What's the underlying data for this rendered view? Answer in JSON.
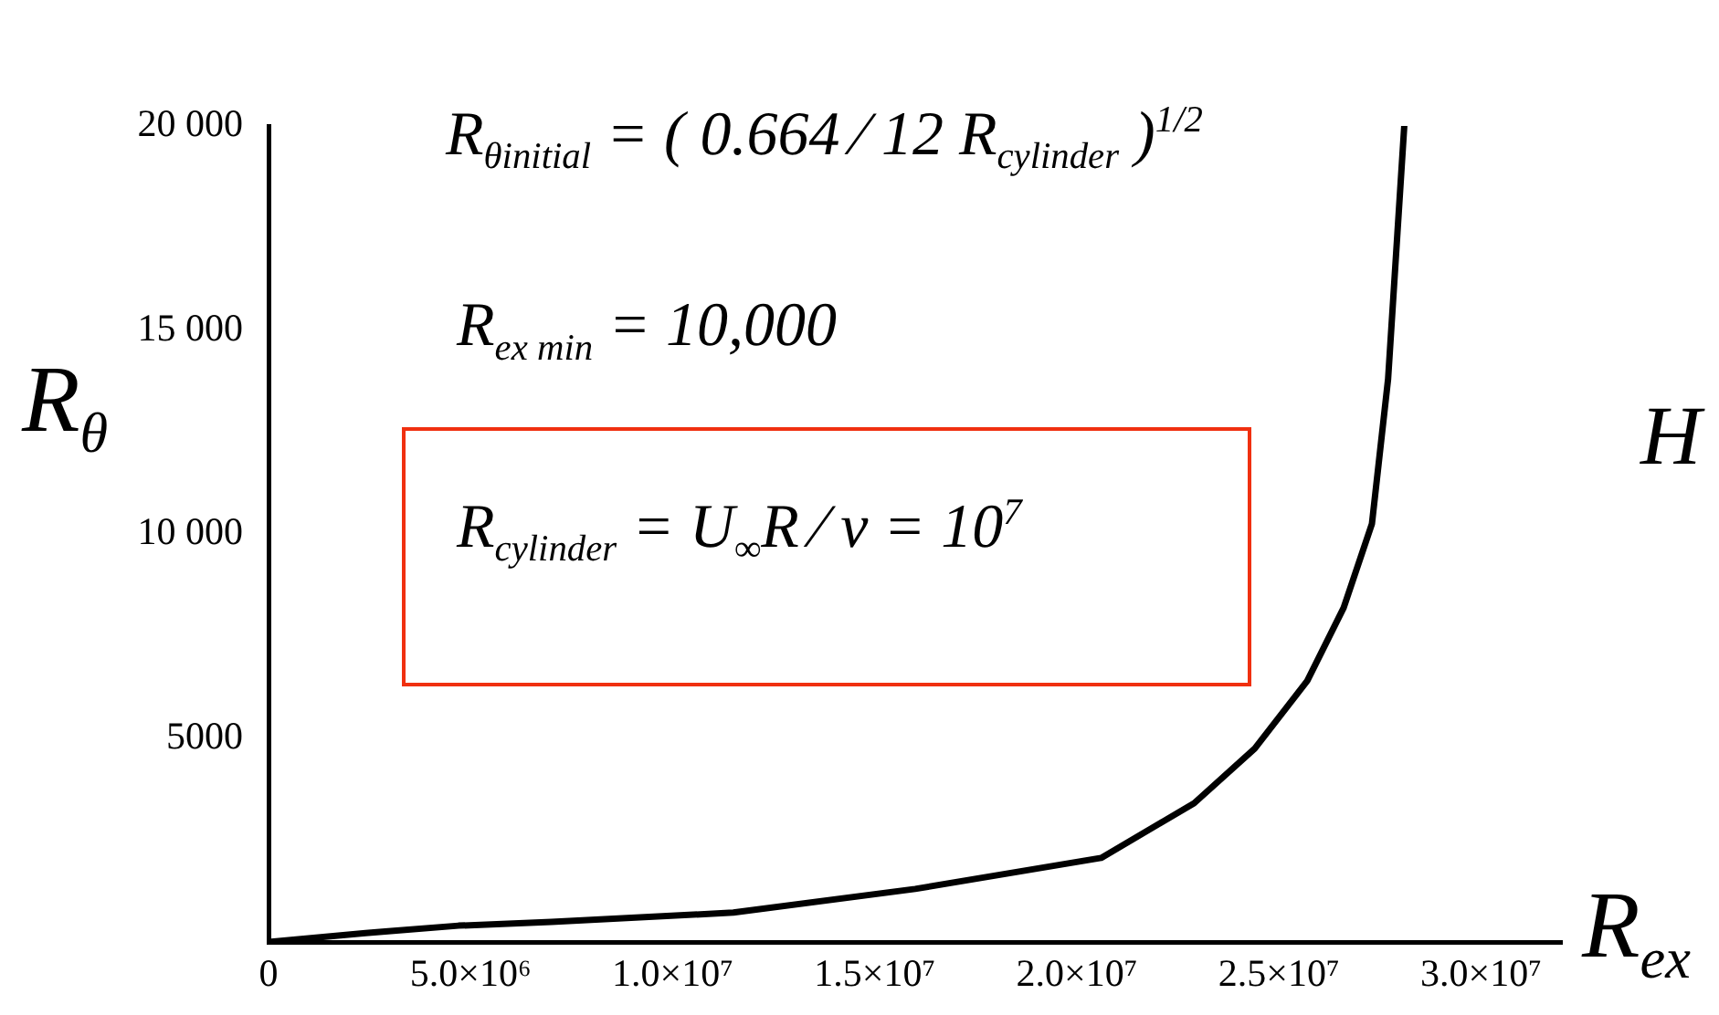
{
  "chart_data": {
    "type": "line",
    "xlabel": "R$_{ex}$",
    "ylabel": "R$_{θ}$",
    "annotations": [
      "R$_{θinitial}$ = ( 0.664 ⁄ 12 R$_{cylinder}$ )$^{1/2}$",
      "R$_{ex min}$ = 10,000",
      "R$_{cylinder}$ = U$_{∞}$R ⁄ ν = 10$^{7}$",
      "H"
    ],
    "x": [
      0,
      2400000,
      4700000,
      7000000,
      11500000,
      16000000,
      20600000,
      22900000,
      24400000,
      25700000,
      26600000,
      27300000,
      27700000,
      28100000
    ],
    "series": [
      {
        "color": "#000000",
        "values": [
          0,
          220,
          400,
          490,
          720,
          1300,
          2060,
          3400,
          4740,
          6400,
          8190,
          10250,
          13800,
          20000
        ]
      }
    ],
    "xlim": [
      0,
      32000000
    ],
    "xticks": [
      {
        "value": 0,
        "label": "0"
      },
      {
        "value": 5000000,
        "label": "5.0×10⁶"
      },
      {
        "value": 10000000,
        "label": "1.0×10⁷"
      },
      {
        "value": 15000000,
        "label": "1.5×10⁷"
      },
      {
        "value": 20000000,
        "label": "2.0×10⁷"
      },
      {
        "value": 25000000,
        "label": "2.5×10⁷"
      },
      {
        "value": 30000000,
        "label": "3.0×10⁷"
      }
    ],
    "ylim": [
      0,
      20000
    ],
    "yticks": [
      {
        "value": 5000,
        "label": "5000"
      },
      {
        "value": 10000,
        "label": "10 000"
      },
      {
        "value": 15000,
        "label": "15 000"
      },
      {
        "value": 20000,
        "label": "20 000"
      }
    ],
    "grid": false,
    "legend": false,
    "marker": "none",
    "line_style": "solid"
  }
}
